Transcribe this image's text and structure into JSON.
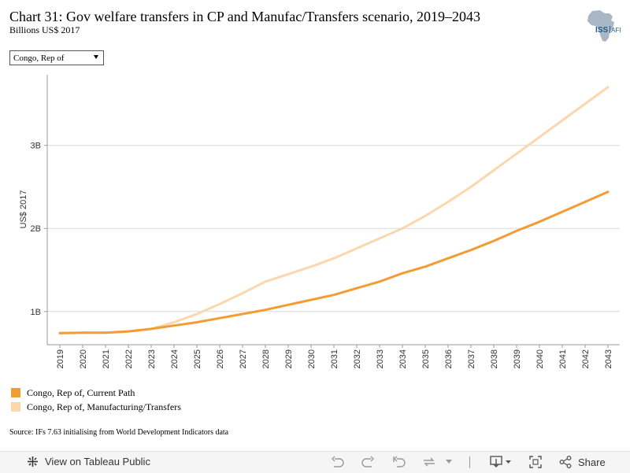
{
  "header": {
    "title": "Chart 31: Gov welfare transfers in CP and Manufac/Transfers scenario, 2019–2043",
    "subtitle": "Billions US$ 2017",
    "logo_text": "ISS AFRICA"
  },
  "filter": {
    "selected": "Congo, Rep of"
  },
  "chart_data": {
    "type": "line",
    "x": [
      2019,
      2020,
      2021,
      2022,
      2023,
      2024,
      2025,
      2026,
      2027,
      2028,
      2029,
      2030,
      2031,
      2032,
      2033,
      2034,
      2035,
      2036,
      2037,
      2038,
      2039,
      2040,
      2041,
      2042,
      2043
    ],
    "x_tick_labels": [
      "2019",
      "2020",
      "2021",
      "2022",
      "2023",
      "2024",
      "2025",
      "2026",
      "2027",
      "2028",
      "2029",
      "2030",
      "2031",
      "2032",
      "2033",
      "2034",
      "2035",
      "2036",
      "2037",
      "2038",
      "2039",
      "2040",
      "2041",
      "2042",
      "2043"
    ],
    "ylabel": "US$ 2017",
    "ylim": [
      0.6,
      3.85
    ],
    "y_ticks": [
      1,
      2,
      3
    ],
    "y_tick_labels": [
      "1B",
      "2B",
      "3B"
    ],
    "grid": true,
    "legend_position": "bottom-left",
    "series": [
      {
        "name": "Congo, Rep of, Current Path",
        "color": "#f39c34",
        "values": [
          0.74,
          0.745,
          0.745,
          0.76,
          0.79,
          0.83,
          0.87,
          0.92,
          0.97,
          1.02,
          1.08,
          1.14,
          1.2,
          1.28,
          1.36,
          1.46,
          1.54,
          1.64,
          1.74,
          1.85,
          1.97,
          2.08,
          2.2,
          2.32,
          2.44
        ]
      },
      {
        "name": "Congo, Rep of, Manufacturing/Transfers",
        "color": "#fbd7ad",
        "values": [
          0.74,
          0.745,
          0.745,
          0.76,
          0.79,
          0.87,
          0.97,
          1.09,
          1.22,
          1.36,
          1.45,
          1.54,
          1.64,
          1.76,
          1.88,
          2.0,
          2.15,
          2.32,
          2.5,
          2.7,
          2.9,
          3.1,
          3.3,
          3.5,
          3.7
        ]
      }
    ]
  },
  "source": "Source: IFs 7.63 initialising from World Development Indicators data",
  "toolbar": {
    "view_label": "View on Tableau Public",
    "share_label": "Share"
  }
}
